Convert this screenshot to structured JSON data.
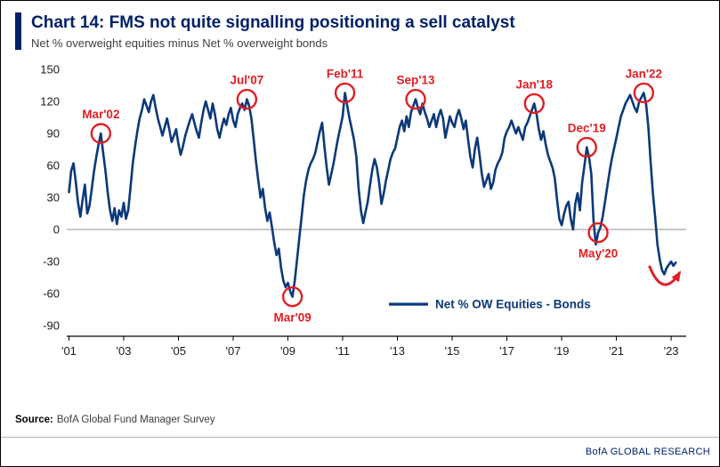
{
  "colors": {
    "title_navy": "#012169",
    "line_navy": "#0B3979",
    "accent_red": "#E01E25",
    "axis_gray": "#909090"
  },
  "header": {
    "title": "Chart 14: FMS not quite signalling positioning a sell catalyst",
    "subtitle": "Net % overweight equities minus Net % overweight bonds"
  },
  "footer": {
    "source_label": "Source:",
    "source_text": "BofA Global Fund Manager Survey",
    "brand": "BofA GLOBAL RESEARCH"
  },
  "chart_data": {
    "type": "line",
    "title": "Chart 14: FMS not quite signalling positioning a sell catalyst",
    "subtitle": "Net % overweight equities minus Net % overweight bonds",
    "ylim": [
      -90,
      150
    ],
    "y_ticks": [
      150,
      120,
      90,
      60,
      30,
      0,
      -30,
      -60,
      -90
    ],
    "zero_line": true,
    "x_ticks": [
      {
        "year": 2001,
        "label": "'01"
      },
      {
        "year": 2003,
        "label": "'03"
      },
      {
        "year": 2005,
        "label": "'05"
      },
      {
        "year": 2007,
        "label": "'07"
      },
      {
        "year": 2009,
        "label": "'09"
      },
      {
        "year": 2011,
        "label": "'11"
      },
      {
        "year": 2013,
        "label": "'13"
      },
      {
        "year": 2015,
        "label": "'15"
      },
      {
        "year": 2017,
        "label": "'17"
      },
      {
        "year": 2019,
        "label": "'19"
      },
      {
        "year": 2021,
        "label": "'21"
      },
      {
        "year": 2023,
        "label": "'23"
      }
    ],
    "legend": {
      "label": "Net % OW Equities - Bonds",
      "position": "inside-bottom-center"
    },
    "series": [
      {
        "name": "Net % OW Equities - Bonds",
        "color": "#0B3979",
        "start_year": 2001,
        "points_per_year": 12,
        "values": [
          35,
          55,
          62,
          45,
          25,
          12,
          28,
          42,
          15,
          22,
          38,
          55,
          68,
          80,
          90,
          72,
          55,
          35,
          18,
          8,
          20,
          5,
          18,
          12,
          25,
          10,
          18,
          40,
          62,
          78,
          92,
          104,
          112,
          122,
          116,
          110,
          120,
          126,
          114,
          104,
          96,
          88,
          96,
          104,
          94,
          82,
          88,
          94,
          80,
          70,
          78,
          88,
          95,
          102,
          108,
          100,
          92,
          86,
          100,
          112,
          120,
          112,
          104,
          118,
          108,
          94,
          86,
          96,
          104,
          98,
          108,
          114,
          102,
          96,
          108,
          114,
          118,
          112,
          122,
          116,
          104,
          84,
          64,
          46,
          30,
          38,
          20,
          8,
          16,
          2,
          -12,
          -24,
          -18,
          -36,
          -48,
          -54,
          -50,
          -58,
          -63,
          -48,
          -28,
          -8,
          12,
          32,
          46,
          56,
          62,
          66,
          72,
          82,
          92,
          100,
          78,
          58,
          42,
          52,
          62,
          74,
          86,
          96,
          106,
          128,
          116,
          104,
          94,
          84,
          68,
          38,
          18,
          6,
          16,
          26,
          42,
          56,
          66,
          58,
          44,
          24,
          34,
          46,
          56,
          66,
          72,
          76,
          86,
          96,
          102,
          92,
          106,
          96,
          110,
          116,
          122,
          114,
          108,
          118,
          110,
          104,
          96,
          102,
          108,
          96,
          106,
          112,
          104,
          86,
          96,
          106,
          100,
          96,
          106,
          112,
          104,
          94,
          102,
          84,
          68,
          58,
          76,
          86,
          70,
          52,
          40,
          46,
          52,
          38,
          44,
          56,
          62,
          66,
          72,
          86,
          92,
          96,
          102,
          96,
          90,
          96,
          90,
          84,
          96,
          100,
          106,
          112,
          118,
          108,
          94,
          84,
          92,
          80,
          70,
          64,
          58,
          48,
          28,
          10,
          4,
          14,
          22,
          26,
          10,
          0,
          24,
          34,
          18,
          44,
          60,
          77,
          68,
          52,
          8,
          -14,
          -3,
          2,
          12,
          26,
          40,
          54,
          66,
          76,
          86,
          96,
          106,
          112,
          118,
          122,
          126,
          120,
          114,
          110,
          120,
          124,
          128,
          118,
          96,
          64,
          34,
          12,
          -14,
          -28,
          -38,
          -42,
          -36,
          -33,
          -30,
          -34,
          -31
        ]
      }
    ],
    "annotations": [
      {
        "label": "Mar'02",
        "index": 14,
        "value": 90,
        "placement": "above"
      },
      {
        "label": "Jul'07",
        "index": 78,
        "value": 122,
        "placement": "above"
      },
      {
        "label": "Mar'09",
        "index": 98,
        "value": -63,
        "placement": "below"
      },
      {
        "label": "Feb'11",
        "index": 121,
        "value": 128,
        "placement": "above"
      },
      {
        "label": "Sep'13",
        "index": 152,
        "value": 122,
        "placement": "above"
      },
      {
        "label": "Jan'18",
        "index": 204,
        "value": 118,
        "placement": "above"
      },
      {
        "label": "Dec'19",
        "index": 227,
        "value": 77,
        "placement": "above"
      },
      {
        "label": "May'20",
        "index": 232,
        "value": -3,
        "placement": "below"
      },
      {
        "label": "Jan'22",
        "index": 252,
        "value": 128,
        "placement": "above"
      }
    ],
    "trend_arrow": {
      "color": "#E01E25",
      "description": "red curved arrow pointing at latest reading near -30"
    }
  }
}
